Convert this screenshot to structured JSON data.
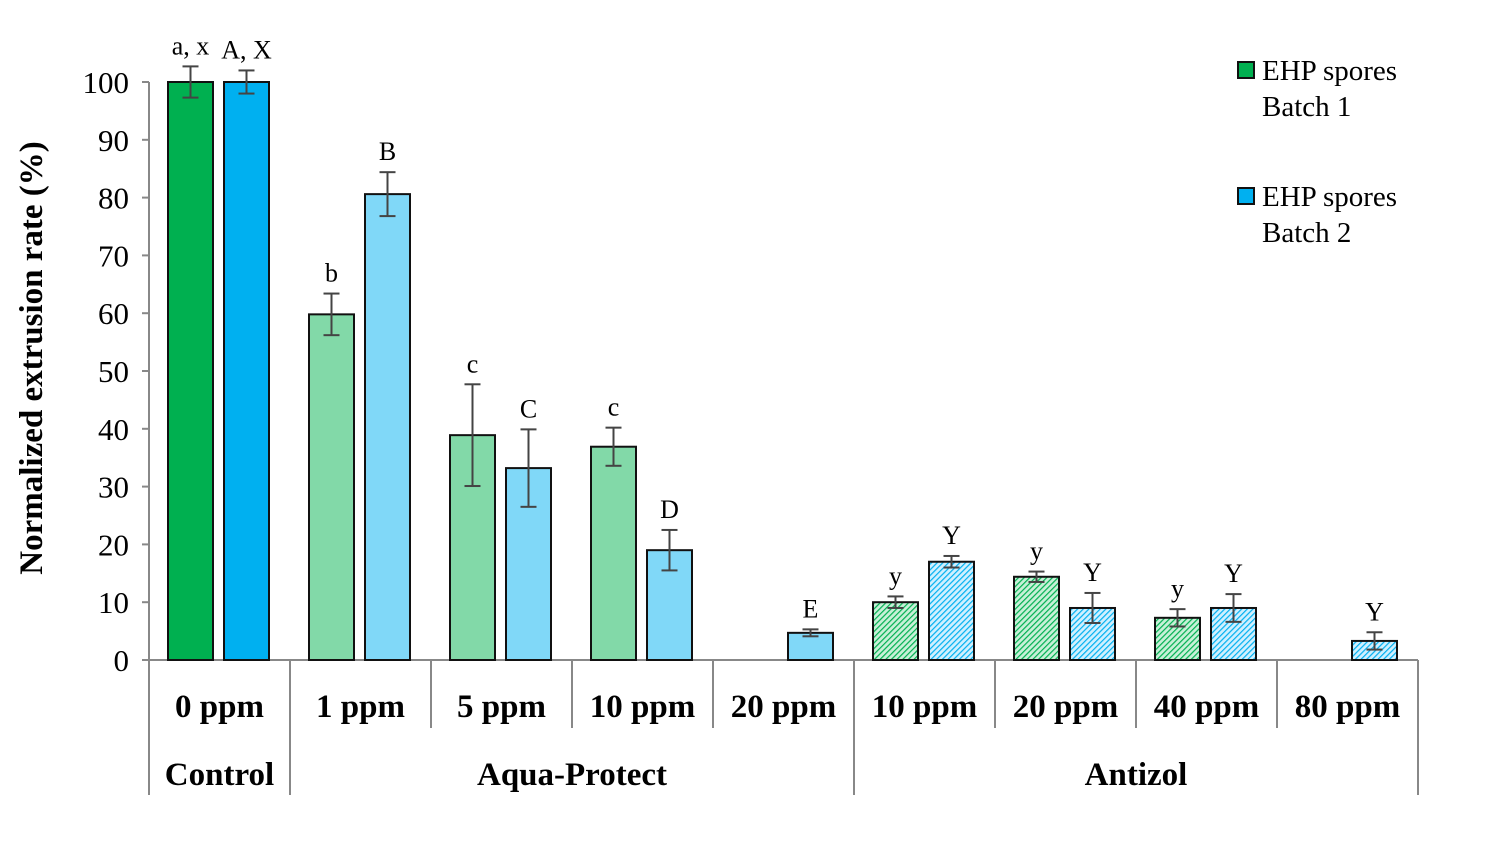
{
  "chart_data": {
    "type": "bar",
    "ylabel": "Normalized extrusion rate (%)",
    "ylim": [
      0,
      100
    ],
    "yticks": [
      "0",
      "10",
      "20",
      "30",
      "40",
      "50",
      "60",
      "70",
      "80",
      "90",
      "100"
    ],
    "grid": false,
    "legend_placement": "top-right",
    "categories": [
      "0 ppm",
      "1 ppm",
      "5 ppm",
      "10 ppm",
      "20 ppm",
      "10 ppm",
      "20 ppm",
      "40 ppm",
      "80 ppm"
    ],
    "groups": [
      {
        "label": "Control",
        "span": 1,
        "style": "solid"
      },
      {
        "label": "Aqua-Protect",
        "span": 4,
        "style": "light"
      },
      {
        "label": "Antizol",
        "span": 4,
        "style": "hatched"
      }
    ],
    "series": [
      {
        "name": "EHP spores\nBatch 1",
        "legend_lines": [
          "EHP spores",
          "Batch 1"
        ],
        "color": "#00b050",
        "light_color": "#82d9a8",
        "values": [
          100,
          59.8,
          38.9,
          36.9,
          null,
          10.0,
          14.4,
          7.3,
          null
        ],
        "errors": [
          2.7,
          3.6,
          8.8,
          3.3,
          null,
          1.0,
          0.9,
          1.5,
          null
        ],
        "labels": [
          "a, x",
          "b",
          "c",
          "c",
          "",
          "y",
          "y",
          "y",
          ""
        ]
      },
      {
        "name": "EHP spores\nBatch 2",
        "legend_lines": [
          "EHP spores",
          "Batch 2"
        ],
        "color": "#00b0f0",
        "light_color": "#80d8f8",
        "values": [
          100,
          80.6,
          33.2,
          19.0,
          4.7,
          17.0,
          9.0,
          9.0,
          3.3
        ],
        "errors": [
          2.0,
          3.8,
          6.7,
          3.5,
          0.6,
          1.0,
          2.6,
          2.4,
          1.5
        ],
        "labels": [
          "A, X",
          "B",
          "C",
          "D",
          "E",
          "Y",
          "Y",
          "Y",
          "Y"
        ]
      }
    ]
  }
}
